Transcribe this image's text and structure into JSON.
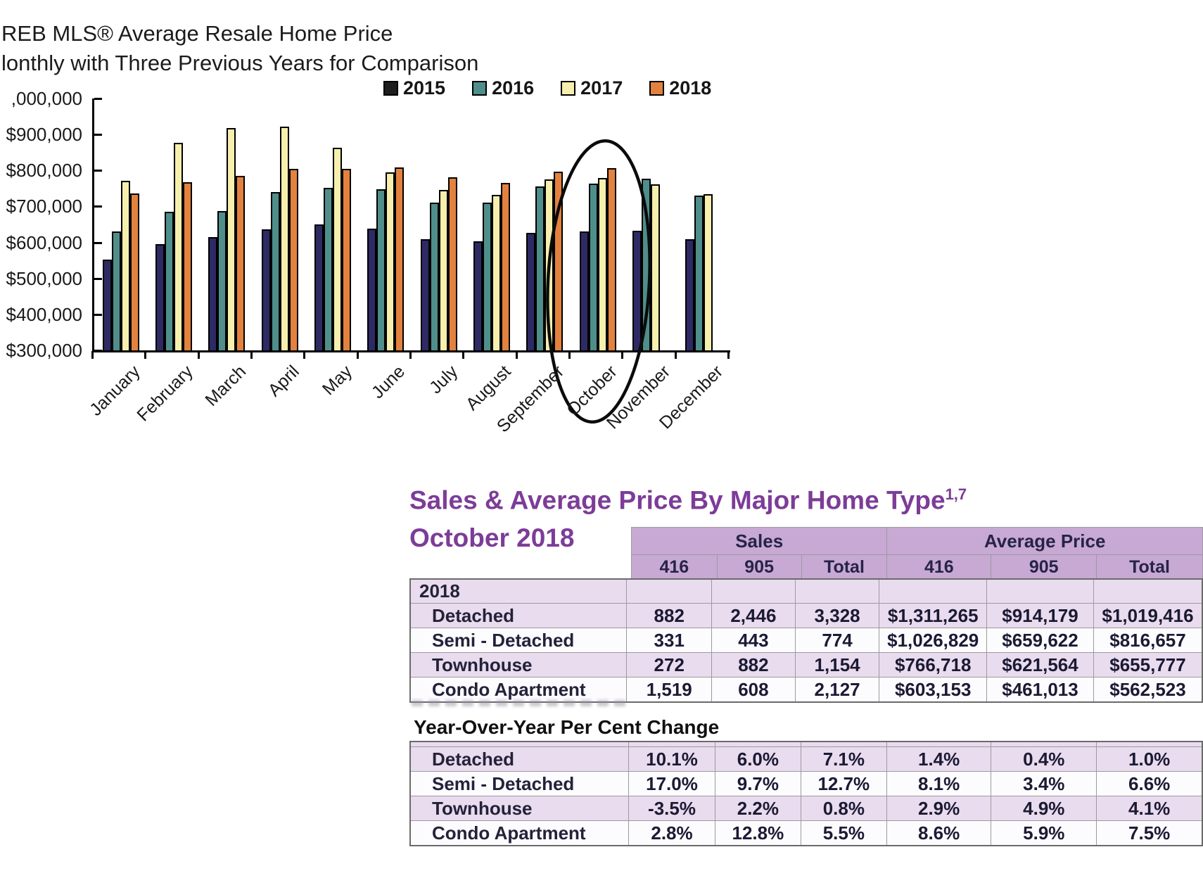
{
  "chart": {
    "title_line1": "REB MLS® Average Resale Home Price",
    "title_line2": "lonthly with Three Previous Years for Comparison",
    "y_axis_labels": [
      ",000,000",
      "$900,000",
      "$800,000",
      "$700,000",
      "$600,000",
      "$500,000",
      "$400,000",
      "$300,000"
    ],
    "annotation": "hand-drawn ellipse circling the October bars"
  },
  "chart_data": {
    "type": "bar",
    "title": "TREB MLS Average Resale Home Price, Monthly with Three Previous Years for Comparison",
    "categories": [
      "January",
      "February",
      "March",
      "April",
      "May",
      "June",
      "July",
      "August",
      "September",
      "October",
      "November",
      "December"
    ],
    "series": [
      {
        "name": "2015",
        "color": "#2e2a64",
        "legend_color": "#1e1e1e",
        "values": [
          552000,
          596000,
          614000,
          636000,
          650000,
          639000,
          609000,
          603000,
          627000,
          631000,
          633000,
          609000
        ]
      },
      {
        "name": "2016",
        "color": "#4f8e8a",
        "values": [
          631000,
          685000,
          688000,
          739000,
          752000,
          747000,
          710000,
          711000,
          756000,
          763000,
          777000,
          730000
        ]
      },
      {
        "name": "2017",
        "color": "#f6efad",
        "values": [
          771000,
          876000,
          917000,
          921000,
          864000,
          794000,
          746000,
          732000,
          776000,
          780000,
          762000,
          735000
        ]
      },
      {
        "name": "2018",
        "color": "#e3823e",
        "values": [
          737000,
          768000,
          785000,
          805000,
          805000,
          808000,
          782000,
          765000,
          797000,
          807000,
          null,
          null
        ]
      }
    ],
    "ylim": [
      300000,
      1000000
    ],
    "y_tick_step": 100000,
    "legend_position": "top",
    "grid": false,
    "annotated_category": "October"
  },
  "tables": {
    "title": "Sales & Average Price By Major Home Type",
    "title_sup": "1,7",
    "subtitle": "October 2018",
    "group_headers": [
      "Sales",
      "Average Price"
    ],
    "sub_headers": [
      "416",
      "905",
      "Total",
      "416",
      "905",
      "Total"
    ],
    "year_label": "2018",
    "rows": [
      {
        "label": "Detached",
        "sales": [
          "882",
          "2,446",
          "3,328"
        ],
        "avg_price": [
          "$1,311,265",
          "$914,179",
          "$1,019,416"
        ]
      },
      {
        "label": "Semi - Detached",
        "sales": [
          "331",
          "443",
          "774"
        ],
        "avg_price": [
          "$1,026,829",
          "$659,622",
          "$816,657"
        ]
      },
      {
        "label": "Townhouse",
        "sales": [
          "272",
          "882",
          "1,154"
        ],
        "avg_price": [
          "$766,718",
          "$621,564",
          "$655,777"
        ]
      },
      {
        "label": "Condo Apartment",
        "sales": [
          "1,519",
          "608",
          "2,127"
        ],
        "avg_price": [
          "$603,153",
          "$461,013",
          "$562,523"
        ]
      }
    ],
    "yoy": {
      "heading": "Year-Over-Year Per Cent Change",
      "rows": [
        {
          "label": "Detached",
          "values": [
            "10.1%",
            "6.0%",
            "7.1%",
            "1.4%",
            "0.4%",
            "1.0%"
          ]
        },
        {
          "label": "Semi - Detached",
          "values": [
            "17.0%",
            "9.7%",
            "12.7%",
            "8.1%",
            "3.4%",
            "6.6%"
          ]
        },
        {
          "label": "Townhouse",
          "values": [
            "-3.5%",
            "2.2%",
            "0.8%",
            "2.9%",
            "4.9%",
            "4.1%"
          ]
        },
        {
          "label": "Condo Apartment",
          "values": [
            "2.8%",
            "12.8%",
            "5.5%",
            "8.6%",
            "5.9%",
            "7.5%"
          ]
        }
      ]
    }
  }
}
